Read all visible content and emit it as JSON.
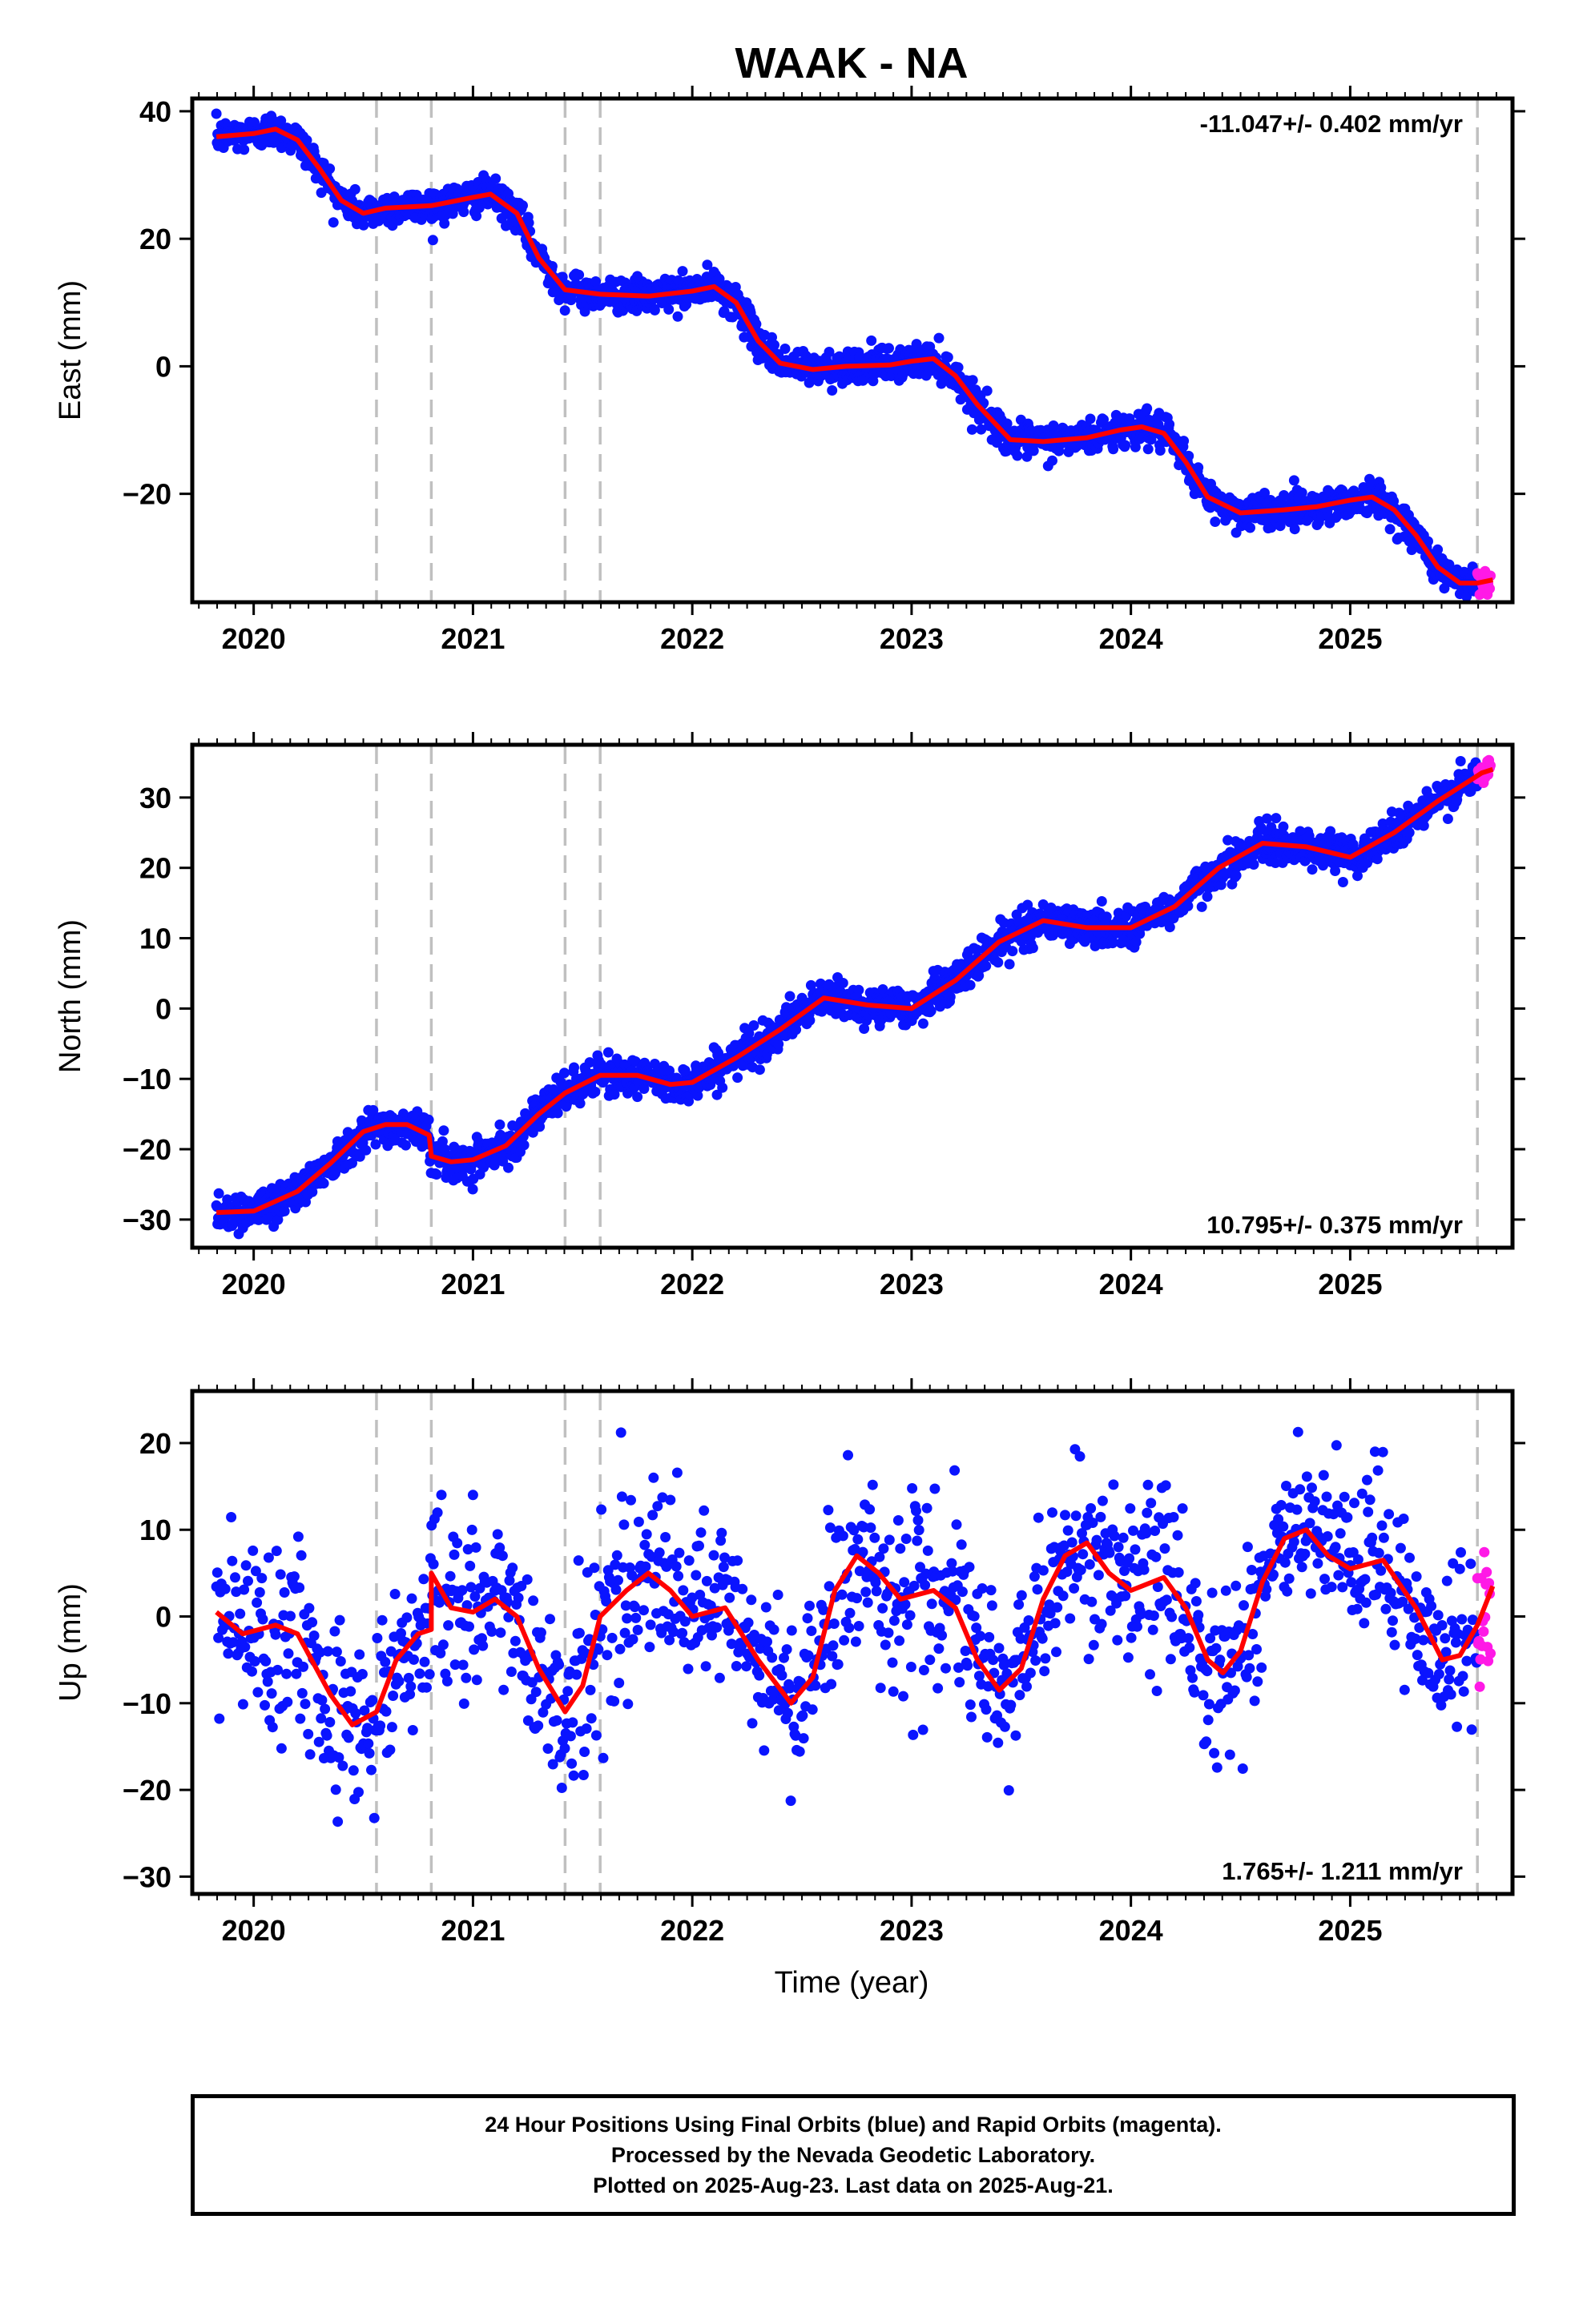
{
  "title": "WAAK - NA",
  "xlabel": "Time (year)",
  "colors": {
    "final_orbits": "#0a14ff",
    "rapid_orbits": "#ff19e6",
    "model": "#ff0000",
    "vertical_marks": "#c0c0c0",
    "axis": "#000000"
  },
  "chart_data": [
    {
      "type": "scatter",
      "name": "east",
      "ylabel": "East (mm)",
      "rate_label": "-11.047+/- 0.402 mm/yr",
      "rate_position": "top-right",
      "xlim": [
        2019.72,
        2025.74
      ],
      "ylim": [
        -37,
        42
      ],
      "x_ticks": [
        2020,
        2021,
        2022,
        2023,
        2024,
        2025
      ],
      "y_ticks": [
        -20,
        0,
        20,
        40
      ],
      "x_tick_labels": [
        "2020",
        "2021",
        "2022",
        "2023",
        "2024",
        "2025"
      ],
      "y_tick_labels": [
        "−20",
        "0",
        "20",
        "40"
      ],
      "grid": false,
      "vertical_marks": [
        2020.56,
        2020.81,
        2021.42,
        2021.58,
        2025.58
      ],
      "model_series": {
        "name": "",
        "points": [
          [
            2019.83,
            36
          ],
          [
            2020.0,
            36.5
          ],
          [
            2020.1,
            37.2
          ],
          [
            2020.2,
            35.5
          ],
          [
            2020.3,
            31
          ],
          [
            2020.4,
            26
          ],
          [
            2020.5,
            24
          ],
          [
            2020.6,
            24.8
          ],
          [
            2020.81,
            25.2
          ],
          [
            2020.9,
            25.8
          ],
          [
            2021.0,
            26.5
          ],
          [
            2021.08,
            27
          ],
          [
            2021.2,
            24
          ],
          [
            2021.3,
            17
          ],
          [
            2021.42,
            12
          ],
          [
            2021.58,
            11.3
          ],
          [
            2021.8,
            11
          ],
          [
            2022.0,
            11.8
          ],
          [
            2022.1,
            12.5
          ],
          [
            2022.2,
            10
          ],
          [
            2022.3,
            4
          ],
          [
            2022.4,
            0.5
          ],
          [
            2022.55,
            -0.5
          ],
          [
            2022.7,
            0
          ],
          [
            2022.9,
            0.2
          ],
          [
            2023.0,
            0.8
          ],
          [
            2023.1,
            1.2
          ],
          [
            2023.2,
            -1.5
          ],
          [
            2023.3,
            -6
          ],
          [
            2023.45,
            -11.5
          ],
          [
            2023.6,
            -11.8
          ],
          [
            2023.8,
            -11.2
          ],
          [
            2023.95,
            -10
          ],
          [
            2024.05,
            -9.5
          ],
          [
            2024.15,
            -10.5
          ],
          [
            2024.25,
            -15
          ],
          [
            2024.35,
            -20.5
          ],
          [
            2024.5,
            -23
          ],
          [
            2024.7,
            -22.5
          ],
          [
            2024.85,
            -22
          ],
          [
            2025.0,
            -21
          ],
          [
            2025.1,
            -20.5
          ],
          [
            2025.2,
            -22.5
          ],
          [
            2025.3,
            -26.5
          ],
          [
            2025.4,
            -31.5
          ],
          [
            2025.5,
            -34
          ],
          [
            2025.58,
            -34
          ],
          [
            2025.65,
            -33.5
          ]
        ]
      },
      "final_series": {
        "name": "",
        "noise": 1.3,
        "x_range": [
          2019.83,
          2025.58
        ]
      },
      "rapid_series": {
        "name": "",
        "noise": 1.3,
        "x_range": [
          2025.58,
          2025.64
        ]
      }
    },
    {
      "type": "scatter",
      "name": "north",
      "ylabel": "North (mm)",
      "rate_label": "10.795+/- 0.375 mm/yr",
      "rate_position": "bottom-right",
      "xlim": [
        2019.72,
        2025.74
      ],
      "ylim": [
        -34,
        37.5
      ],
      "x_ticks": [
        2020,
        2021,
        2022,
        2023,
        2024,
        2025
      ],
      "y_ticks": [
        -30,
        -20,
        -10,
        0,
        10,
        20,
        30
      ],
      "x_tick_labels": [
        "2020",
        "2021",
        "2022",
        "2023",
        "2024",
        "2025"
      ],
      "y_tick_labels": [
        "−30",
        "−20",
        "−10",
        "0",
        "10",
        "20",
        "30"
      ],
      "grid": false,
      "vertical_marks": [
        2020.56,
        2020.81,
        2021.42,
        2021.58,
        2025.58
      ],
      "model_series": {
        "name": "",
        "points": [
          [
            2019.83,
            -29
          ],
          [
            2020.0,
            -28.8
          ],
          [
            2020.2,
            -26
          ],
          [
            2020.35,
            -22
          ],
          [
            2020.5,
            -17.5
          ],
          [
            2020.6,
            -16.5
          ],
          [
            2020.7,
            -16.5
          ],
          [
            2020.8,
            -18
          ],
          [
            2020.81,
            -21
          ],
          [
            2020.9,
            -21.8
          ],
          [
            2021.0,
            -21.5
          ],
          [
            2021.15,
            -19.5
          ],
          [
            2021.3,
            -15
          ],
          [
            2021.42,
            -12
          ],
          [
            2021.58,
            -9.5
          ],
          [
            2021.75,
            -9.5
          ],
          [
            2021.9,
            -10.8
          ],
          [
            2022.0,
            -10.5
          ],
          [
            2022.2,
            -7
          ],
          [
            2022.4,
            -3
          ],
          [
            2022.6,
            1.5
          ],
          [
            2022.8,
            0.5
          ],
          [
            2023.0,
            0
          ],
          [
            2023.2,
            4
          ],
          [
            2023.4,
            9.5
          ],
          [
            2023.6,
            12.5
          ],
          [
            2023.8,
            11.5
          ],
          [
            2024.0,
            11.5
          ],
          [
            2024.2,
            14.5
          ],
          [
            2024.4,
            20
          ],
          [
            2024.6,
            23.5
          ],
          [
            2024.8,
            23
          ],
          [
            2025.0,
            21.5
          ],
          [
            2025.2,
            25
          ],
          [
            2025.4,
            29.5
          ],
          [
            2025.6,
            33.5
          ],
          [
            2025.65,
            34
          ]
        ]
      },
      "final_series": {
        "name": "",
        "noise": 1.3,
        "x_range": [
          2019.83,
          2025.58
        ]
      },
      "rapid_series": {
        "name": "",
        "noise": 1.3,
        "x_range": [
          2025.58,
          2025.64
        ]
      }
    },
    {
      "type": "scatter",
      "name": "up",
      "ylabel": "Up (mm)",
      "rate_label": "1.765+/- 1.211 mm/yr",
      "rate_position": "bottom-right",
      "xlim": [
        2019.72,
        2025.74
      ],
      "ylim": [
        -32,
        26
      ],
      "x_ticks": [
        2020,
        2021,
        2022,
        2023,
        2024,
        2025
      ],
      "y_ticks": [
        -30,
        -20,
        -10,
        0,
        10,
        20
      ],
      "x_tick_labels": [
        "2020",
        "2021",
        "2022",
        "2023",
        "2024",
        "2025"
      ],
      "y_tick_labels": [
        "−30",
        "−20",
        "−10",
        "0",
        "10",
        "20"
      ],
      "grid": false,
      "vertical_marks": [
        2020.56,
        2020.81,
        2021.42,
        2021.58,
        2025.58
      ],
      "model_series": {
        "name": "",
        "points": [
          [
            2019.83,
            0.5
          ],
          [
            2019.95,
            -2
          ],
          [
            2020.1,
            -1
          ],
          [
            2020.2,
            -2
          ],
          [
            2020.35,
            -9
          ],
          [
            2020.45,
            -12.5
          ],
          [
            2020.56,
            -11
          ],
          [
            2020.65,
            -5
          ],
          [
            2020.75,
            -2
          ],
          [
            2020.81,
            -1.5
          ],
          [
            2020.81,
            5
          ],
          [
            2020.9,
            1
          ],
          [
            2021.0,
            0.5
          ],
          [
            2021.1,
            2
          ],
          [
            2021.2,
            0
          ],
          [
            2021.3,
            -6
          ],
          [
            2021.42,
            -11
          ],
          [
            2021.5,
            -8
          ],
          [
            2021.58,
            0
          ],
          [
            2021.7,
            3
          ],
          [
            2021.8,
            5
          ],
          [
            2021.9,
            3
          ],
          [
            2022.0,
            0
          ],
          [
            2022.15,
            1
          ],
          [
            2022.3,
            -5
          ],
          [
            2022.45,
            -10
          ],
          [
            2022.55,
            -7
          ],
          [
            2022.65,
            3
          ],
          [
            2022.75,
            7
          ],
          [
            2022.85,
            5
          ],
          [
            2022.95,
            2
          ],
          [
            2023.1,
            3
          ],
          [
            2023.2,
            1
          ],
          [
            2023.3,
            -5
          ],
          [
            2023.4,
            -8.5
          ],
          [
            2023.5,
            -6
          ],
          [
            2023.6,
            2
          ],
          [
            2023.7,
            7
          ],
          [
            2023.8,
            8.5
          ],
          [
            2023.9,
            5
          ],
          [
            2024.0,
            3
          ],
          [
            2024.15,
            4.5
          ],
          [
            2024.25,
            1
          ],
          [
            2024.35,
            -5
          ],
          [
            2024.42,
            -6.5
          ],
          [
            2024.5,
            -4
          ],
          [
            2024.6,
            4
          ],
          [
            2024.7,
            9
          ],
          [
            2024.8,
            10
          ],
          [
            2024.9,
            7
          ],
          [
            2025.0,
            5.5
          ],
          [
            2025.15,
            6.5
          ],
          [
            2025.3,
            1
          ],
          [
            2025.42,
            -5
          ],
          [
            2025.5,
            -4.5
          ],
          [
            2025.58,
            -1
          ],
          [
            2025.65,
            3.5
          ]
        ]
      },
      "final_series": {
        "name": "",
        "noise": 5.2,
        "x_range": [
          2019.83,
          2025.58
        ]
      },
      "rapid_series": {
        "name": "",
        "noise": 4.5,
        "x_range": [
          2025.58,
          2025.64
        ]
      }
    }
  ],
  "footer": {
    "line1": "24 Hour Positions Using Final Orbits (blue) and Rapid Orbits (magenta).",
    "line2": "Processed by the Nevada Geodetic Laboratory.",
    "line3": "Plotted on 2025-Aug-23. Last data on 2025-Aug-21."
  }
}
